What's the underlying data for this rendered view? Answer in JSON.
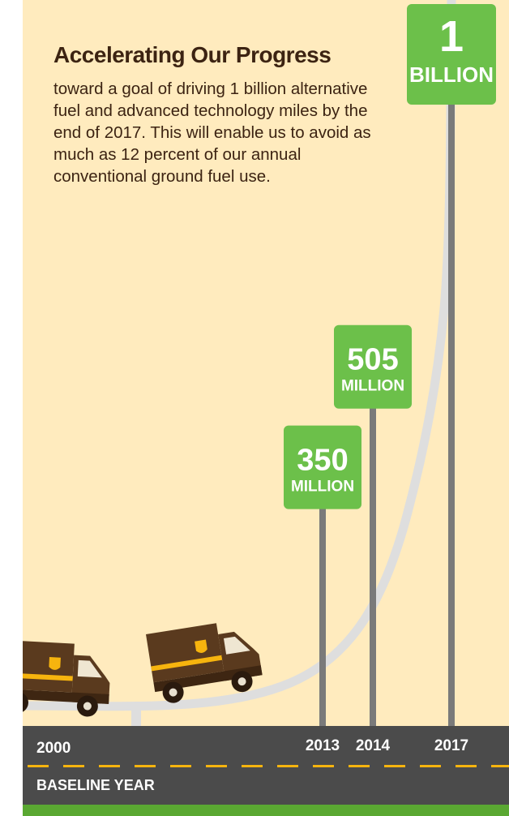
{
  "heading": "Accelerating Our Progress",
  "description": "toward a goal of driving 1 billion alternative fuel and advanced technology miles by the end of 2017. This will enable us to avoid as much as 12 percent of our annual conventional ground fuel use.",
  "colors": {
    "background": "#FFEBBE",
    "sign_green": "#6CC04A",
    "pole": "#7A7A7A",
    "road": "#4B4B4B",
    "road_stripe": "#F6B40E",
    "bottom_band": "#5AA832",
    "curve": "#DEDEDE",
    "truck_brown": "#5A3A1E",
    "truck_gold": "#F6B40E",
    "text_dark": "#3C2312"
  },
  "chart_data": {
    "type": "bar",
    "categories": [
      "2000",
      "2013",
      "2014",
      "2017"
    ],
    "values": [
      0,
      350,
      505,
      1000
    ],
    "value_unit": "million miles",
    "labels": [
      {
        "year": "2013",
        "value_text": "350",
        "unit_text": "MILLION"
      },
      {
        "year": "2014",
        "value_text": "505",
        "unit_text": "MILLION"
      },
      {
        "year": "2017",
        "value_text": "1",
        "unit_text": "BILLION"
      }
    ],
    "baseline_year": "2000",
    "baseline_label": "BASELINE YEAR",
    "ylim": [
      0,
      1000
    ],
    "grid": false
  }
}
